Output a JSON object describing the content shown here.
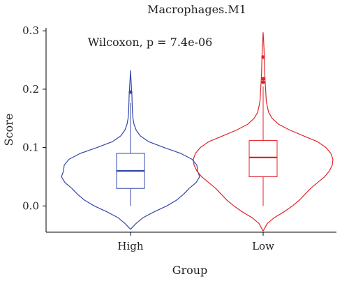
{
  "chart_data": {
    "type": "violin",
    "title": "Macrophages.M1",
    "annotation": "Wilcoxon, p = 7.4e-06",
    "xlabel": "Group",
    "ylabel": "Score",
    "categories": [
      "High",
      "Low"
    ],
    "ylim": [
      -0.045,
      0.305
    ],
    "yticks": [
      0.0,
      0.1,
      0.2,
      0.3
    ],
    "ytick_labels": [
      "0.0",
      "0.1",
      "0.2",
      "0.3"
    ],
    "grid": false,
    "legend": "none",
    "series": [
      {
        "color": "#3347a8",
        "violin_min": -0.04,
        "violin_max": 0.232,
        "box": {
          "whisker_low": 0.0,
          "q1": 0.03,
          "median": 0.06,
          "q3": 0.09,
          "whisker_high": 0.176
        },
        "outliers": [
          0.195
        ],
        "density": [
          [
            -0.04,
            0.0
          ],
          [
            -0.03,
            0.08
          ],
          [
            -0.02,
            0.18
          ],
          [
            -0.01,
            0.34
          ],
          [
            0.0,
            0.52
          ],
          [
            0.01,
            0.66
          ],
          [
            0.02,
            0.76
          ],
          [
            0.03,
            0.84
          ],
          [
            0.04,
            0.94
          ],
          [
            0.05,
            0.99
          ],
          [
            0.06,
            0.96
          ],
          [
            0.07,
            0.95
          ],
          [
            0.08,
            0.88
          ],
          [
            0.09,
            0.72
          ],
          [
            0.1,
            0.48
          ],
          [
            0.11,
            0.26
          ],
          [
            0.12,
            0.14
          ],
          [
            0.13,
            0.08
          ],
          [
            0.14,
            0.05
          ],
          [
            0.15,
            0.035
          ],
          [
            0.16,
            0.028
          ],
          [
            0.17,
            0.025
          ],
          [
            0.18,
            0.022
          ],
          [
            0.19,
            0.02
          ],
          [
            0.2,
            0.014
          ],
          [
            0.21,
            0.01
          ],
          [
            0.22,
            0.005
          ],
          [
            0.232,
            0.0
          ]
        ]
      },
      {
        "color": "#e0242a",
        "violin_min": -0.043,
        "violin_max": 0.297,
        "box": {
          "whisker_low": 0.0,
          "q1": 0.05,
          "median": 0.083,
          "q3": 0.112,
          "whisker_high": 0.205
        },
        "outliers": [
          0.212,
          0.218,
          0.255
        ],
        "density": [
          [
            -0.043,
            0.0
          ],
          [
            -0.03,
            0.06
          ],
          [
            -0.02,
            0.16
          ],
          [
            -0.01,
            0.3
          ],
          [
            0.0,
            0.42
          ],
          [
            0.01,
            0.52
          ],
          [
            0.02,
            0.6
          ],
          [
            0.03,
            0.68
          ],
          [
            0.04,
            0.78
          ],
          [
            0.05,
            0.88
          ],
          [
            0.06,
            0.95
          ],
          [
            0.07,
            0.99
          ],
          [
            0.08,
            1.0
          ],
          [
            0.09,
            0.97
          ],
          [
            0.1,
            0.9
          ],
          [
            0.11,
            0.78
          ],
          [
            0.12,
            0.58
          ],
          [
            0.13,
            0.38
          ],
          [
            0.14,
            0.22
          ],
          [
            0.15,
            0.13
          ],
          [
            0.16,
            0.08
          ],
          [
            0.17,
            0.06
          ],
          [
            0.18,
            0.045
          ],
          [
            0.19,
            0.04
          ],
          [
            0.2,
            0.035
          ],
          [
            0.21,
            0.03
          ],
          [
            0.22,
            0.026
          ],
          [
            0.23,
            0.022
          ],
          [
            0.24,
            0.02
          ],
          [
            0.25,
            0.018
          ],
          [
            0.26,
            0.015
          ],
          [
            0.27,
            0.012
          ],
          [
            0.28,
            0.008
          ],
          [
            0.297,
            0.0
          ]
        ]
      }
    ]
  }
}
